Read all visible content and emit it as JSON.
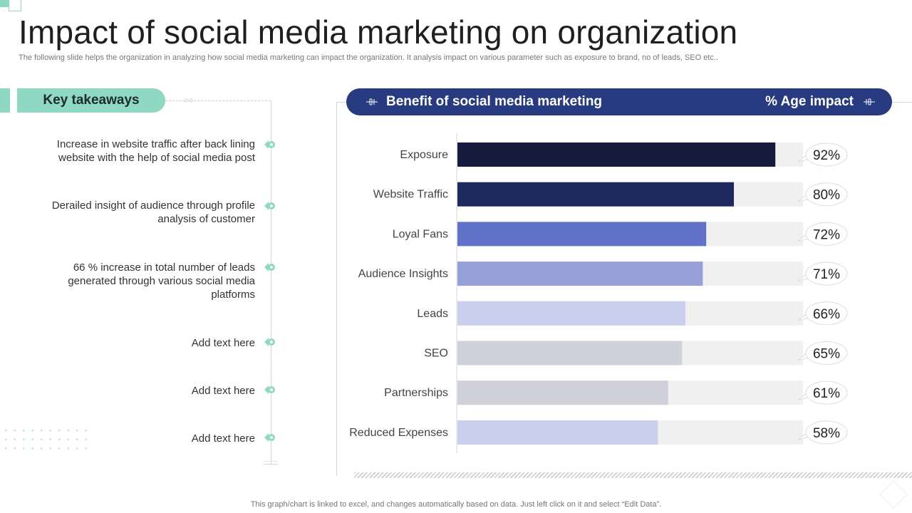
{
  "title": "Impact of social media marketing on organization",
  "subtitle": "The following slide helps the organization in analyzing how social media marketing can impact the organization. It analysis impact on various parameter such as exposure to brand, no of leads, SEO etc..",
  "takeaways": {
    "heading": "Key takeaways",
    "items": [
      "Increase  in website traffic after back lining website with the help of social media post",
      "Derailed insight of audience through profile analysis of customer",
      "66 % increase in total number of leads generated through various social media platforms",
      "Add text here",
      "Add text here",
      "Add text here"
    ]
  },
  "chart_header": {
    "title": "Benefit of social media marketing",
    "value_label": "% Age impact"
  },
  "chart_data": {
    "type": "bar",
    "orientation": "horizontal",
    "title": "Benefit of social media marketing",
    "value_label": "% Age impact",
    "categories": [
      "Exposure",
      "Website Traffic",
      "Loyal Fans",
      "Audience Insights",
      "Leads",
      "SEO",
      "Partnerships",
      "Reduced Expenses"
    ],
    "values": [
      92,
      80,
      72,
      71,
      66,
      65,
      61,
      58
    ],
    "value_labels": [
      "92%",
      "80%",
      "72%",
      "71%",
      "66%",
      "65%",
      "61%",
      "58%"
    ],
    "xlim": [
      0,
      100
    ],
    "bar_colors": [
      "#161b3d",
      "#1e2a5e",
      "#6272c9",
      "#97a0d6",
      "#c9cfec",
      "#d0d1da",
      "#d0d1da",
      "#c9cfec"
    ],
    "track_color": "#f0f0f0",
    "legend": "none",
    "grid": false
  },
  "footnote": "This graph/chart is linked to excel,  and changes automatically based on data. Just left click on it and select “Edit Data”.",
  "colors": {
    "accent": "#8fd8c2",
    "header": "#283a80"
  }
}
